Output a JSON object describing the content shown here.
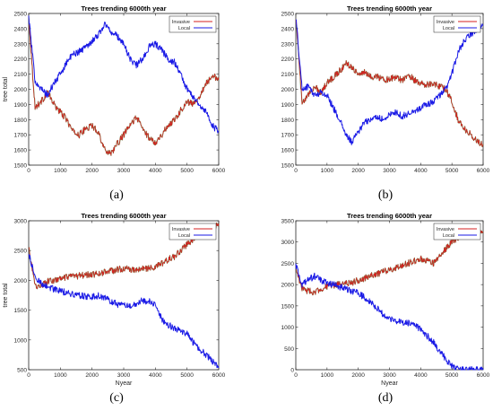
{
  "figure": {
    "panel_labels": [
      "(a)",
      "(b)",
      "(c)",
      "(d)"
    ]
  },
  "colors": {
    "invasive": "#d62020",
    "local": "#1a1ae6",
    "invasive_shade": "#1f7a1f"
  },
  "chart_data": [
    {
      "type": "line",
      "panel": "(a)",
      "title": "Trees trending 6000th year",
      "xlabel": "",
      "ylabel": "tree total",
      "xlim": [
        0,
        6000
      ],
      "ylim": [
        1500,
        2500
      ],
      "xticks": [
        0,
        1000,
        2000,
        3000,
        4000,
        5000,
        6000
      ],
      "yticks": [
        1500,
        1600,
        1700,
        1800,
        1900,
        2000,
        2100,
        2200,
        2300,
        2400,
        2500
      ],
      "legend_position": "top-right",
      "series": [
        {
          "name": "Invasive",
          "color": "#d62020",
          "x": [
            0,
            200,
            400,
            600,
            800,
            1000,
            1200,
            1400,
            1600,
            1800,
            2000,
            2200,
            2400,
            2600,
            2800,
            3000,
            3200,
            3400,
            3600,
            3800,
            4000,
            4200,
            4400,
            4600,
            4800,
            5000,
            5200,
            5400,
            5600,
            5800,
            6000
          ],
          "values": [
            2480,
            1880,
            1920,
            1980,
            1900,
            1850,
            1800,
            1720,
            1700,
            1740,
            1760,
            1720,
            1600,
            1580,
            1640,
            1700,
            1760,
            1820,
            1740,
            1680,
            1650,
            1700,
            1760,
            1800,
            1860,
            1920,
            1900,
            1960,
            2040,
            2080,
            2080
          ]
        },
        {
          "name": "Local",
          "color": "#1a1ae6",
          "x": [
            0,
            200,
            400,
            600,
            800,
            1000,
            1200,
            1400,
            1600,
            1800,
            2000,
            2200,
            2400,
            2600,
            2800,
            3000,
            3200,
            3400,
            3600,
            3800,
            4000,
            4200,
            4400,
            4600,
            4800,
            5000,
            5200,
            5400,
            5600,
            5800,
            6000
          ],
          "values": [
            2480,
            2060,
            2000,
            1960,
            2040,
            2100,
            2180,
            2230,
            2250,
            2280,
            2320,
            2360,
            2430,
            2380,
            2350,
            2300,
            2200,
            2160,
            2200,
            2280,
            2300,
            2260,
            2200,
            2180,
            2100,
            2000,
            1950,
            1900,
            1850,
            1760,
            1720
          ]
        }
      ]
    },
    {
      "type": "line",
      "panel": "(b)",
      "title": "Trees trending 6000th year",
      "xlabel": "",
      "ylabel": "",
      "xlim": [
        0,
        6000
      ],
      "ylim": [
        1500,
        2500
      ],
      "xticks": [
        0,
        1000,
        2000,
        3000,
        4000,
        5000,
        6000
      ],
      "yticks": [
        1500,
        1600,
        1700,
        1800,
        1900,
        2000,
        2100,
        2200,
        2300,
        2400,
        2500
      ],
      "legend_position": "top-right",
      "series": [
        {
          "name": "Invasive",
          "color": "#d62020",
          "x": [
            0,
            200,
            400,
            600,
            800,
            1000,
            1200,
            1400,
            1600,
            1800,
            2000,
            2200,
            2400,
            2600,
            2800,
            3000,
            3200,
            3400,
            3600,
            3800,
            4000,
            4200,
            4400,
            4600,
            4800,
            5000,
            5200,
            5400,
            5600,
            5800,
            6000
          ],
          "values": [
            2480,
            1900,
            1960,
            2020,
            1980,
            2040,
            2080,
            2120,
            2170,
            2150,
            2100,
            2110,
            2080,
            2090,
            2060,
            2070,
            2080,
            2060,
            2100,
            2060,
            2040,
            2030,
            2040,
            2020,
            2000,
            1920,
            1800,
            1740,
            1700,
            1660,
            1640
          ]
        },
        {
          "name": "Local",
          "color": "#1a1ae6",
          "x": [
            0,
            200,
            400,
            600,
            800,
            1000,
            1200,
            1400,
            1600,
            1800,
            2000,
            2200,
            2400,
            2600,
            2800,
            3000,
            3200,
            3400,
            3600,
            3800,
            4000,
            4200,
            4400,
            4600,
            4800,
            5000,
            5200,
            5400,
            5600,
            5800,
            6000
          ],
          "values": [
            2480,
            2000,
            2020,
            1960,
            1980,
            1960,
            1880,
            1800,
            1700,
            1650,
            1720,
            1780,
            1800,
            1820,
            1800,
            1830,
            1850,
            1820,
            1840,
            1860,
            1880,
            1900,
            1920,
            1960,
            2000,
            2100,
            2250,
            2320,
            2360,
            2400,
            2420
          ]
        }
      ]
    },
    {
      "type": "line",
      "panel": "(c)",
      "title": "Trees trending 6000th year",
      "xlabel": "Nyear",
      "ylabel": "tree total",
      "xlim": [
        0,
        6000
      ],
      "ylim": [
        500,
        3000
      ],
      "xticks": [
        0,
        1000,
        2000,
        3000,
        4000,
        5000,
        6000
      ],
      "yticks": [
        500,
        1000,
        1500,
        2000,
        2500,
        3000
      ],
      "legend_position": "top-right",
      "series": [
        {
          "name": "Invasive",
          "color": "#d62020",
          "x": [
            0,
            200,
            400,
            600,
            800,
            1000,
            1200,
            1400,
            1600,
            1800,
            2000,
            2200,
            2400,
            2600,
            2800,
            3000,
            3200,
            3400,
            3600,
            3800,
            4000,
            4200,
            4400,
            4600,
            4800,
            5000,
            5200,
            5400,
            5600,
            5800,
            6000
          ],
          "values": [
            2550,
            1900,
            1920,
            1980,
            2000,
            2020,
            2050,
            2060,
            2080,
            2090,
            2100,
            2110,
            2140,
            2160,
            2180,
            2200,
            2180,
            2170,
            2200,
            2200,
            2220,
            2280,
            2350,
            2400,
            2500,
            2600,
            2700,
            2760,
            2800,
            2880,
            2950
          ]
        },
        {
          "name": "Local",
          "color": "#1a1ae6",
          "x": [
            0,
            200,
            400,
            600,
            800,
            1000,
            1200,
            1400,
            1600,
            1800,
            2000,
            2200,
            2400,
            2600,
            2800,
            3000,
            3200,
            3400,
            3600,
            3800,
            4000,
            4200,
            4400,
            4600,
            4800,
            5000,
            5200,
            5400,
            5600,
            5800,
            6000
          ],
          "values": [
            2450,
            2050,
            1950,
            1900,
            1850,
            1820,
            1800,
            1760,
            1750,
            1730,
            1720,
            1740,
            1700,
            1650,
            1600,
            1580,
            1560,
            1620,
            1660,
            1650,
            1580,
            1350,
            1250,
            1200,
            1150,
            1100,
            950,
            850,
            750,
            650,
            530
          ]
        }
      ]
    },
    {
      "type": "line",
      "panel": "(d)",
      "title": "Trees trending 6000th year",
      "xlabel": "Nyear",
      "ylabel": "",
      "xlim": [
        0,
        6000
      ],
      "ylim": [
        0,
        3500
      ],
      "xticks": [
        0,
        1000,
        2000,
        3000,
        4000,
        5000,
        6000
      ],
      "yticks": [
        0,
        500,
        1000,
        1500,
        2000,
        2500,
        3000,
        3500
      ],
      "legend_position": "top-right",
      "series": [
        {
          "name": "Invasive",
          "color": "#d62020",
          "x": [
            0,
            200,
            400,
            600,
            800,
            1000,
            1200,
            1400,
            1600,
            1800,
            2000,
            2200,
            2400,
            2600,
            2800,
            3000,
            3200,
            3400,
            3600,
            3800,
            4000,
            4200,
            4400,
            4600,
            4800,
            5000,
            5200,
            5400,
            5600,
            5800,
            6000
          ],
          "values": [
            2400,
            1900,
            1850,
            1820,
            1900,
            1950,
            1980,
            2000,
            2020,
            2050,
            2100,
            2150,
            2200,
            2250,
            2300,
            2350,
            2400,
            2450,
            2500,
            2550,
            2600,
            2580,
            2500,
            2650,
            2850,
            3000,
            3100,
            3200,
            3300,
            3300,
            3250
          ]
        },
        {
          "name": "Local",
          "color": "#1a1ae6",
          "x": [
            0,
            200,
            400,
            600,
            800,
            1000,
            1200,
            1400,
            1600,
            1800,
            2000,
            2200,
            2400,
            2600,
            2800,
            3000,
            3200,
            3400,
            3600,
            3800,
            4000,
            4200,
            4400,
            4600,
            4800,
            5000,
            5200,
            5400,
            5600,
            5800,
            6000
          ],
          "values": [
            2450,
            2000,
            2100,
            2200,
            2100,
            2050,
            2000,
            1950,
            1900,
            1850,
            1800,
            1700,
            1600,
            1450,
            1300,
            1200,
            1150,
            1100,
            1100,
            1050,
            950,
            800,
            650,
            450,
            250,
            80,
            20,
            0,
            0,
            0,
            0
          ]
        }
      ]
    }
  ]
}
